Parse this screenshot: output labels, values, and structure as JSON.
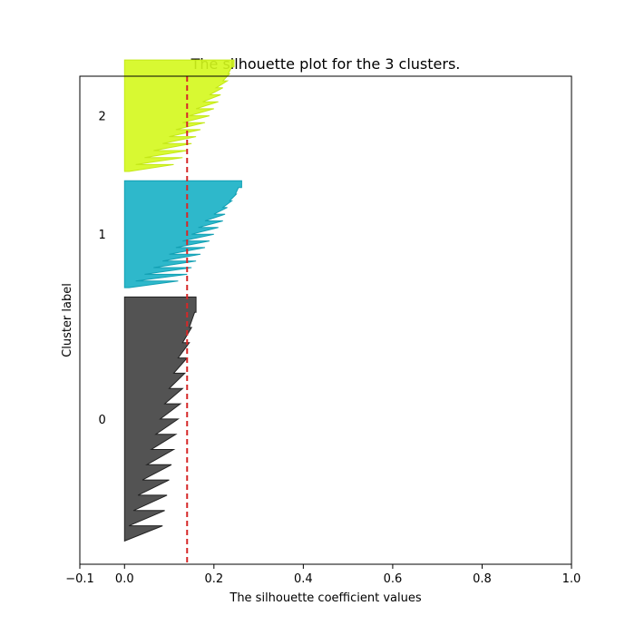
{
  "chart_data": {
    "type": "area",
    "title": "The silhouette plot for the 3 clusters.",
    "xlabel": "The silhouette coefficient values",
    "ylabel": "Cluster label",
    "xlim": [
      -0.1,
      1.0
    ],
    "xticks": [
      -0.1,
      0.0,
      0.2,
      0.4,
      0.6,
      0.8,
      1.0
    ],
    "xtick_labels": [
      "−0.1",
      "0.0",
      "0.2",
      "0.4",
      "0.6",
      "0.8",
      "1.0"
    ],
    "ylim": [
      0,
      210
    ],
    "grid": false,
    "average_silhouette": 0.14,
    "average_line_color": "#d62728",
    "clusters": [
      {
        "label": "0",
        "color": "#404040",
        "edge_color": "#222222",
        "y_range": [
          10,
          115
        ],
        "profile": [
          [
            0.16,
            0.16
          ],
          [
            0.157,
            0.145
          ],
          [
            0.15,
            0.13
          ],
          [
            0.145,
            0.12
          ],
          [
            0.14,
            0.11
          ],
          [
            0.135,
            0.1
          ],
          [
            0.13,
            0.09
          ],
          [
            0.125,
            0.08
          ],
          [
            0.12,
            0.07
          ],
          [
            0.115,
            0.06
          ],
          [
            0.11,
            0.05
          ],
          [
            0.105,
            0.04
          ],
          [
            0.1,
            0.03
          ],
          [
            0.095,
            0.02
          ],
          [
            0.09,
            0.01
          ],
          [
            0.085,
            0.0
          ]
        ]
      },
      {
        "label": "1",
        "color": "#17b0c5",
        "edge_color": "#12a0b4",
        "y_range": [
          119,
          165
        ],
        "profile": [
          [
            0.262,
            0.262
          ],
          [
            0.255,
            0.248
          ],
          [
            0.25,
            0.235
          ],
          [
            0.24,
            0.22
          ],
          [
            0.23,
            0.2
          ],
          [
            0.225,
            0.18
          ],
          [
            0.22,
            0.165
          ],
          [
            0.21,
            0.15
          ],
          [
            0.2,
            0.13
          ],
          [
            0.19,
            0.115
          ],
          [
            0.18,
            0.1
          ],
          [
            0.17,
            0.085
          ],
          [
            0.16,
            0.065
          ],
          [
            0.15,
            0.045
          ],
          [
            0.14,
            0.025
          ],
          [
            0.12,
            0.01
          ]
        ]
      },
      {
        "label": "2",
        "color": "#d4f81c",
        "edge_color": "#c4e818",
        "y_range": [
          169,
          217
        ],
        "profile": [
          [
            0.245,
            0.245
          ],
          [
            0.24,
            0.232
          ],
          [
            0.235,
            0.22
          ],
          [
            0.23,
            0.205
          ],
          [
            0.22,
            0.19
          ],
          [
            0.215,
            0.175
          ],
          [
            0.21,
            0.16
          ],
          [
            0.2,
            0.145
          ],
          [
            0.19,
            0.13
          ],
          [
            0.18,
            0.115
          ],
          [
            0.17,
            0.1
          ],
          [
            0.16,
            0.085
          ],
          [
            0.15,
            0.065
          ],
          [
            0.14,
            0.045
          ],
          [
            0.13,
            0.025
          ],
          [
            0.11,
            0.01
          ]
        ]
      }
    ]
  }
}
